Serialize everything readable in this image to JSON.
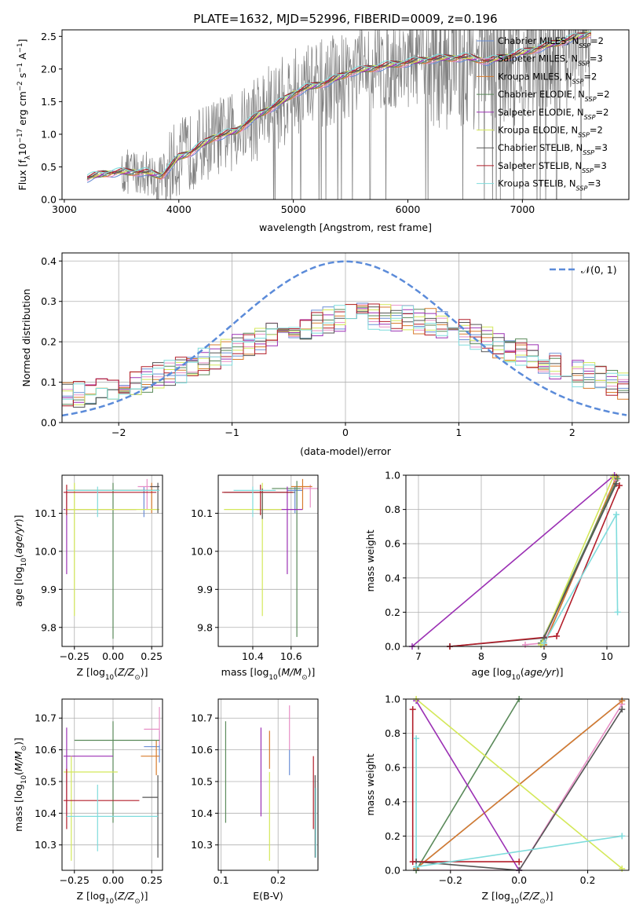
{
  "figure": {
    "title": "PLATE=1632, MJD=52996, FIBERID=0009, z=0.196"
  },
  "colors": {
    "Chabrier MILES": "#6b8fd6",
    "Salpeter MILES": "#e88fc6",
    "Kroupa MILES": "#d77b2c",
    "Chabrier ELODIE": "#5a8a5a",
    "Salpeter ELODIE": "#9b30b4",
    "Kroupa ELODIE": "#d4e85a",
    "Chabrier STELIB": "#555555",
    "Salpeter STELIB": "#b21e2a",
    "Kroupa STELIB": "#7fdcdc",
    "data": "#808080",
    "gaussian": "#5b8bd9"
  },
  "chart_data": [
    {
      "id": "spectrum",
      "type": "line",
      "title": "PLATE=1632, MJD=52996, FIBERID=0009, z=0.196",
      "xlabel": "wavelength [Angstrom, rest frame]",
      "ylabel": "Flux [f_λ 10^-17 erg cm^-2 s^-1 A^-1]",
      "xlim": [
        2980,
        7930
      ],
      "ylim": [
        0,
        2.6
      ],
      "xticks": [
        3000,
        4000,
        5000,
        6000,
        7000
      ],
      "yticks": [
        0.0,
        0.5,
        1.0,
        1.5,
        2.0,
        2.5
      ],
      "legend": "right",
      "legend_entries": [
        {
          "name": "Chabrier MILES",
          "nssp": "2"
        },
        {
          "name": "Salpeter MILES",
          "nssp": "3"
        },
        {
          "name": "Kroupa MILES",
          "nssp": "2"
        },
        {
          "name": "Chabrier ELODIE",
          "nssp": "2"
        },
        {
          "name": "Salpeter ELODIE",
          "nssp": "2"
        },
        {
          "name": "Kroupa ELODIE",
          "nssp": "2"
        },
        {
          "name": "Chabrier STELIB",
          "nssp": "3"
        },
        {
          "name": "Salpeter STELIB",
          "nssp": "3"
        },
        {
          "name": "Kroupa STELIB",
          "nssp": "3"
        }
      ],
      "continuum": {
        "x": [
          3200,
          3350,
          3500,
          3700,
          3850,
          3950,
          4000,
          4100,
          4300,
          4500,
          4700,
          4900,
          5000,
          5100,
          5300,
          5500,
          5800,
          6000,
          6200,
          6500,
          6700,
          7000,
          7200,
          7400,
          7600
        ],
        "y": [
          0.33,
          0.4,
          0.42,
          0.42,
          0.36,
          0.55,
          0.65,
          0.72,
          0.95,
          1.05,
          1.3,
          1.5,
          1.62,
          1.7,
          1.8,
          1.95,
          2.05,
          2.1,
          2.15,
          2.18,
          2.12,
          2.25,
          2.35,
          2.45,
          2.55
        ]
      }
    },
    {
      "id": "residuals",
      "type": "histogram",
      "xlabel": "(data-model)/error",
      "ylabel": "Normed distribution",
      "xlim": [
        -2.5,
        2.5
      ],
      "ylim": [
        0,
        0.42
      ],
      "xticks": [
        -2,
        -1,
        0,
        1,
        2
      ],
      "yticks": [
        0.0,
        0.1,
        0.2,
        0.3,
        0.4
      ],
      "legend": "top-right",
      "gaussian_label": "𝒩(0, 1)",
      "bin_width": 0.1
    },
    {
      "id": "age_vs_Z",
      "type": "errorbar",
      "xlabel": "Z [log10(Z/Z⊙)]",
      "ylabel": "age  [log10(age/yr)]",
      "xlim": [
        -0.33,
        0.32
      ],
      "ylim": [
        9.75,
        10.2
      ],
      "xticks": [
        -0.25,
        0.0,
        0.25
      ],
      "yticks": [
        9.8,
        9.9,
        10.0,
        10.1
      ],
      "points": [
        {
          "model": "Chabrier MILES",
          "x": 0.2,
          "y": 10.16,
          "xerr": [
            0.08,
            0.1
          ],
          "yerr": [
            0.07,
            0.01
          ]
        },
        {
          "model": "Salpeter MILES",
          "x": 0.22,
          "y": 10.17,
          "xerr": [
            0.06,
            0.08
          ],
          "yerr": [
            0.06,
            0.02
          ]
        },
        {
          "model": "Kroupa MILES",
          "x": 0.25,
          "y": 10.16,
          "xerr": [
            0.55,
            0.05
          ],
          "yerr": [
            0.06,
            0.02
          ]
        },
        {
          "model": "Chabrier ELODIE",
          "x": 0.0,
          "y": 10.16,
          "xerr": [
            0.3,
            0.3
          ],
          "yerr": [
            0.39,
            0.02
          ]
        },
        {
          "model": "Salpeter ELODIE",
          "x": -0.3,
          "y": 10.11,
          "xerr": [
            0.02,
            0.45
          ],
          "yerr": [
            0.17,
            0.05
          ]
        },
        {
          "model": "Kroupa ELODIE",
          "x": -0.25,
          "y": 10.11,
          "xerr": [
            0.06,
            0.55
          ],
          "yerr": [
            0.28,
            0.07
          ]
        },
        {
          "model": "Chabrier STELIB",
          "x": 0.29,
          "y": 10.17,
          "xerr": [
            0.05,
            0.01
          ],
          "yerr": [
            0.07,
            0.01
          ]
        },
        {
          "model": "Salpeter STELIB",
          "x": -0.3,
          "y": 10.155,
          "xerr": [
            0.02,
            0.58
          ],
          "yerr": [
            0.06,
            0.02
          ]
        },
        {
          "model": "Kroupa STELIB",
          "x": -0.1,
          "y": 10.16,
          "xerr": [
            0.2,
            0.4
          ],
          "yerr": [
            0.07,
            0.01
          ]
        }
      ]
    },
    {
      "id": "age_vs_mass",
      "type": "errorbar",
      "xlabel": "mass [log10(M/M⊙)]",
      "ylabel": "",
      "xlim": [
        10.22,
        10.74
      ],
      "ylim": [
        9.75,
        10.2
      ],
      "xticks": [
        10.4,
        10.6
      ],
      "yticks": [
        9.8,
        9.9,
        10.0,
        10.1
      ],
      "points": [
        {
          "model": "Chabrier MILES",
          "x": 10.62,
          "y": 10.16,
          "xerr": [
            0.04,
            0.04
          ],
          "yerr": [
            0.06,
            0.01
          ]
        },
        {
          "model": "Salpeter MILES",
          "x": 10.7,
          "y": 10.165,
          "xerr": [
            0.05,
            0.04
          ],
          "yerr": [
            0.05,
            0.01
          ]
        },
        {
          "model": "Kroupa MILES",
          "x": 10.66,
          "y": 10.17,
          "xerr": [
            0.06,
            0.05
          ],
          "yerr": [
            0.06,
            0.02
          ]
        },
        {
          "model": "Chabrier ELODIE",
          "x": 10.63,
          "y": 10.165,
          "xerr": [
            0.13,
            0.02
          ],
          "yerr": [
            0.39,
            0.02
          ]
        },
        {
          "model": "Salpeter ELODIE",
          "x": 10.58,
          "y": 10.11,
          "xerr": [
            0.16,
            0.08
          ],
          "yerr": [
            0.17,
            0.06
          ]
        },
        {
          "model": "Kroupa ELODIE",
          "x": 10.45,
          "y": 10.11,
          "xerr": [
            0.2,
            0.1
          ],
          "yerr": [
            0.28,
            0.07
          ]
        },
        {
          "model": "Chabrier STELIB",
          "x": 10.45,
          "y": 10.155,
          "xerr": [
            0.2,
            0.17
          ],
          "yerr": [
            0.07,
            0.01
          ]
        },
        {
          "model": "Salpeter STELIB",
          "x": 10.44,
          "y": 10.155,
          "xerr": [
            0.2,
            0.17
          ],
          "yerr": [
            0.06,
            0.02
          ]
        },
        {
          "model": "Kroupa STELIB",
          "x": 10.4,
          "y": 10.16,
          "xerr": [
            0.1,
            0.12
          ],
          "yerr": [
            0.07,
            0.01
          ]
        }
      ]
    },
    {
      "id": "weight_vs_age",
      "type": "line",
      "xlabel": "age  [log10(age/yr)]",
      "ylabel": "mass weight",
      "xlim": [
        6.8,
        10.35
      ],
      "ylim": [
        0,
        1.0
      ],
      "xticks": [
        7,
        8,
        9,
        10
      ],
      "yticks": [
        0.0,
        0.2,
        0.4,
        0.6,
        0.8,
        1.0
      ],
      "series": [
        {
          "model": "Chabrier MILES",
          "x": [
            9.0,
            10.15
          ],
          "y": [
            0.01,
            0.99
          ]
        },
        {
          "model": "Salpeter MILES",
          "x": [
            8.7,
            9.0,
            10.15
          ],
          "y": [
            0.01,
            0.02,
            0.97
          ]
        },
        {
          "model": "Kroupa MILES",
          "x": [
            9.0,
            10.15
          ],
          "y": [
            0.01,
            0.99
          ]
        },
        {
          "model": "Chabrier ELODIE",
          "x": [
            8.95,
            10.17
          ],
          "y": [
            0.02,
            0.98
          ]
        },
        {
          "model": "Salpeter ELODIE",
          "x": [
            6.9,
            10.12
          ],
          "y": [
            0.0,
            1.0
          ]
        },
        {
          "model": "Kroupa ELODIE",
          "x": [
            8.95,
            10.1
          ],
          "y": [
            0.01,
            0.99
          ]
        },
        {
          "model": "Chabrier STELIB",
          "x": [
            7.5,
            9.0,
            10.15
          ],
          "y": [
            0.0,
            0.05,
            0.95
          ]
        },
        {
          "model": "Salpeter STELIB",
          "x": [
            7.5,
            9.2,
            10.2
          ],
          "y": [
            0.0,
            0.06,
            0.94
          ]
        },
        {
          "model": "Kroupa STELIB",
          "x": [
            9.0,
            10.15,
            10.17
          ],
          "y": [
            0.02,
            0.77,
            0.2
          ]
        }
      ]
    },
    {
      "id": "mass_vs_Z",
      "type": "errorbar",
      "xlabel": "Z [log10(Z/Z⊙)]",
      "ylabel": "mass [log10(M/M⊙)]",
      "xlim": [
        -0.33,
        0.32
      ],
      "ylim": [
        10.22,
        10.76
      ],
      "xticks": [
        -0.25,
        0.0,
        0.25
      ],
      "yticks": [
        10.3,
        10.4,
        10.5,
        10.6,
        10.7
      ],
      "points": [
        {
          "model": "Chabrier MILES",
          "x": 0.3,
          "y": 10.61,
          "xerr": [
            0.1,
            0.0
          ],
          "yerr": [
            0.05,
            0.05
          ]
        },
        {
          "model": "Salpeter MILES",
          "x": 0.3,
          "y": 10.665,
          "xerr": [
            0.1,
            0.0
          ],
          "yerr": [
            0.05,
            0.07
          ]
        },
        {
          "model": "Kroupa MILES",
          "x": 0.28,
          "y": 10.58,
          "xerr": [
            0.1,
            0.02
          ],
          "yerr": [
            0.06,
            0.05
          ]
        },
        {
          "model": "Chabrier ELODIE",
          "x": 0.0,
          "y": 10.63,
          "xerr": [
            0.25,
            0.3
          ],
          "yerr": [
            0.26,
            0.06
          ]
        },
        {
          "model": "Salpeter ELODIE",
          "x": -0.3,
          "y": 10.58,
          "xerr": [
            0.02,
            0.3
          ],
          "yerr": [
            0.19,
            0.09
          ]
        },
        {
          "model": "Kroupa ELODIE",
          "x": -0.27,
          "y": 10.53,
          "xerr": [
            0.05,
            0.3
          ],
          "yerr": [
            0.28,
            0.05
          ]
        },
        {
          "model": "Chabrier STELIB",
          "x": 0.29,
          "y": 10.45,
          "xerr": [
            0.1,
            0.0
          ],
          "yerr": [
            0.19,
            0.07
          ]
        },
        {
          "model": "Salpeter STELIB",
          "x": -0.3,
          "y": 10.44,
          "xerr": [
            0.02,
            0.47
          ],
          "yerr": [
            0.09,
            0.1
          ]
        },
        {
          "model": "Kroupa STELIB",
          "x": -0.1,
          "y": 10.39,
          "xerr": [
            0.2,
            0.39
          ],
          "yerr": [
            0.11,
            0.1
          ]
        }
      ]
    },
    {
      "id": "mass_vs_ebv",
      "type": "errorbar",
      "xlabel": "E(B-V)",
      "ylabel": "",
      "xlim": [
        0.095,
        0.27
      ],
      "ylim": [
        10.22,
        10.76
      ],
      "xticks": [
        0.1,
        0.2
      ],
      "yticks": [
        10.3,
        10.4,
        10.5,
        10.6,
        10.7
      ],
      "points": [
        {
          "model": "Chabrier MILES",
          "x": 0.22,
          "y": 10.56,
          "xerr": [
            0,
            0
          ],
          "yerr": [
            0.04,
            0.04
          ]
        },
        {
          "model": "Salpeter MILES",
          "x": 0.22,
          "y": 10.66,
          "xerr": [
            0,
            0
          ],
          "yerr": [
            0.06,
            0.08
          ]
        },
        {
          "model": "Kroupa MILES",
          "x": 0.185,
          "y": 10.6,
          "xerr": [
            0,
            0
          ],
          "yerr": [
            0.06,
            0.06
          ]
        },
        {
          "model": "Chabrier ELODIE",
          "x": 0.108,
          "y": 10.53,
          "xerr": [
            0,
            0
          ],
          "yerr": [
            0.16,
            0.16
          ]
        },
        {
          "model": "Salpeter ELODIE",
          "x": 0.17,
          "y": 10.53,
          "xerr": [
            0,
            0
          ],
          "yerr": [
            0.14,
            0.14
          ]
        },
        {
          "model": "Kroupa ELODIE",
          "x": 0.185,
          "y": 10.39,
          "xerr": [
            0,
            0
          ],
          "yerr": [
            0.14,
            0.14
          ]
        },
        {
          "model": "Chabrier STELIB",
          "x": 0.265,
          "y": 10.39,
          "xerr": [
            0,
            0
          ],
          "yerr": [
            0.13,
            0.13
          ]
        },
        {
          "model": "Salpeter STELIB",
          "x": 0.262,
          "y": 10.46,
          "xerr": [
            0,
            0
          ],
          "yerr": [
            0.11,
            0.12
          ]
        },
        {
          "model": "Kroupa STELIB",
          "x": 0.266,
          "y": 10.36,
          "xerr": [
            0,
            0
          ],
          "yerr": [
            0.1,
            0.12
          ]
        }
      ]
    },
    {
      "id": "weight_vs_Z",
      "type": "line",
      "xlabel": "Z [log10(Z/Z⊙)]",
      "ylabel": "mass weight",
      "xlim": [
        -0.33,
        0.32
      ],
      "ylim": [
        0,
        1.0
      ],
      "xticks": [
        -0.2,
        0.0,
        0.2
      ],
      "yticks": [
        0.0,
        0.2,
        0.4,
        0.6,
        0.8,
        1.0
      ],
      "series": [
        {
          "model": "Chabrier MILES",
          "x": [
            -0.3,
            0.3
          ],
          "y": [
            0.01,
            0.99
          ]
        },
        {
          "model": "Salpeter MILES",
          "x": [
            -0.3,
            0.0,
            0.3
          ],
          "y": [
            0.0,
            0.0,
            0.97
          ]
        },
        {
          "model": "Kroupa MILES",
          "x": [
            -0.3,
            0.3
          ],
          "y": [
            0.01,
            0.99
          ]
        },
        {
          "model": "Chabrier ELODIE",
          "x": [
            -0.3,
            0.0
          ],
          "y": [
            0.0,
            1.0
          ]
        },
        {
          "model": "Salpeter ELODIE",
          "x": [
            -0.3,
            0.0
          ],
          "y": [
            0.99,
            0.0
          ]
        },
        {
          "model": "Kroupa ELODIE",
          "x": [
            -0.3,
            0.3
          ],
          "y": [
            1.0,
            0.01
          ]
        },
        {
          "model": "Chabrier STELIB",
          "x": [
            -0.3,
            0.0,
            0.3
          ],
          "y": [
            0.05,
            0.0,
            0.94
          ]
        },
        {
          "model": "Salpeter STELIB",
          "x": [
            -0.31,
            -0.31,
            0.0
          ],
          "y": [
            0.94,
            0.05,
            0.05
          ]
        },
        {
          "model": "Kroupa STELIB",
          "x": [
            -0.3,
            -0.3,
            0.3
          ],
          "y": [
            0.77,
            0.02,
            0.2
          ]
        }
      ]
    }
  ]
}
